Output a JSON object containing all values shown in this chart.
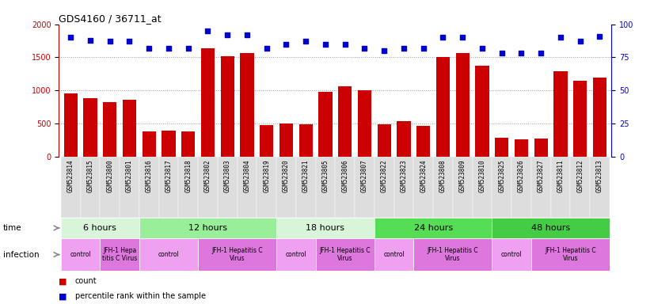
{
  "title": "GDS4160 / 36711_at",
  "samples": [
    "GSM523814",
    "GSM523815",
    "GSM523800",
    "GSM523801",
    "GSM523816",
    "GSM523817",
    "GSM523818",
    "GSM523802",
    "GSM523803",
    "GSM523804",
    "GSM523819",
    "GSM523820",
    "GSM523821",
    "GSM523805",
    "GSM523806",
    "GSM523807",
    "GSM523822",
    "GSM523823",
    "GSM523824",
    "GSM523808",
    "GSM523809",
    "GSM523810",
    "GSM523825",
    "GSM523826",
    "GSM523827",
    "GSM523811",
    "GSM523812",
    "GSM523813"
  ],
  "counts": [
    950,
    880,
    820,
    860,
    380,
    390,
    380,
    1640,
    1520,
    1560,
    480,
    500,
    490,
    980,
    1060,
    1000,
    490,
    530,
    470,
    1510,
    1570,
    1380,
    280,
    260,
    270,
    1290,
    1150,
    1190
  ],
  "percentiles": [
    90,
    88,
    87,
    87,
    82,
    82,
    82,
    95,
    92,
    92,
    82,
    85,
    87,
    85,
    85,
    82,
    80,
    82,
    82,
    90,
    90,
    82,
    78,
    78,
    78,
    90,
    87,
    91
  ],
  "time_groups": [
    {
      "label": "6 hours",
      "start": 0,
      "end": 4,
      "color": "#d9f5d9"
    },
    {
      "label": "12 hours",
      "start": 4,
      "end": 11,
      "color": "#99ee99"
    },
    {
      "label": "18 hours",
      "start": 11,
      "end": 16,
      "color": "#d9f5d9"
    },
    {
      "label": "24 hours",
      "start": 16,
      "end": 22,
      "color": "#55dd55"
    },
    {
      "label": "48 hours",
      "start": 22,
      "end": 28,
      "color": "#44cc44"
    }
  ],
  "infection_groups": [
    {
      "label": "control",
      "start": 0,
      "end": 2,
      "color": "#f0a0f0"
    },
    {
      "label": "JFH-1 Hepa\ntitis C Virus",
      "start": 2,
      "end": 4,
      "color": "#dd77dd"
    },
    {
      "label": "control",
      "start": 4,
      "end": 7,
      "color": "#f0a0f0"
    },
    {
      "label": "JFH-1 Hepatitis C\nVirus",
      "start": 7,
      "end": 11,
      "color": "#dd77dd"
    },
    {
      "label": "control",
      "start": 11,
      "end": 13,
      "color": "#f0a0f0"
    },
    {
      "label": "JFH-1 Hepatitis C\nVirus",
      "start": 13,
      "end": 16,
      "color": "#dd77dd"
    },
    {
      "label": "control",
      "start": 16,
      "end": 18,
      "color": "#f0a0f0"
    },
    {
      "label": "JFH-1 Hepatitis C\nVirus",
      "start": 18,
      "end": 22,
      "color": "#dd77dd"
    },
    {
      "label": "control",
      "start": 22,
      "end": 24,
      "color": "#f0a0f0"
    },
    {
      "label": "JFH-1 Hepatitis C\nVirus",
      "start": 24,
      "end": 28,
      "color": "#dd77dd"
    }
  ],
  "bar_color": "#cc0000",
  "dot_color": "#0000cc",
  "ylim_left": [
    0,
    2000
  ],
  "ylim_right": [
    0,
    100
  ],
  "yticks_left": [
    0,
    500,
    1000,
    1500,
    2000
  ],
  "yticks_right": [
    0,
    25,
    50,
    75,
    100
  ],
  "bg_color": "#ffffff",
  "bar_width": 0.7,
  "label_bg": "#dddddd"
}
